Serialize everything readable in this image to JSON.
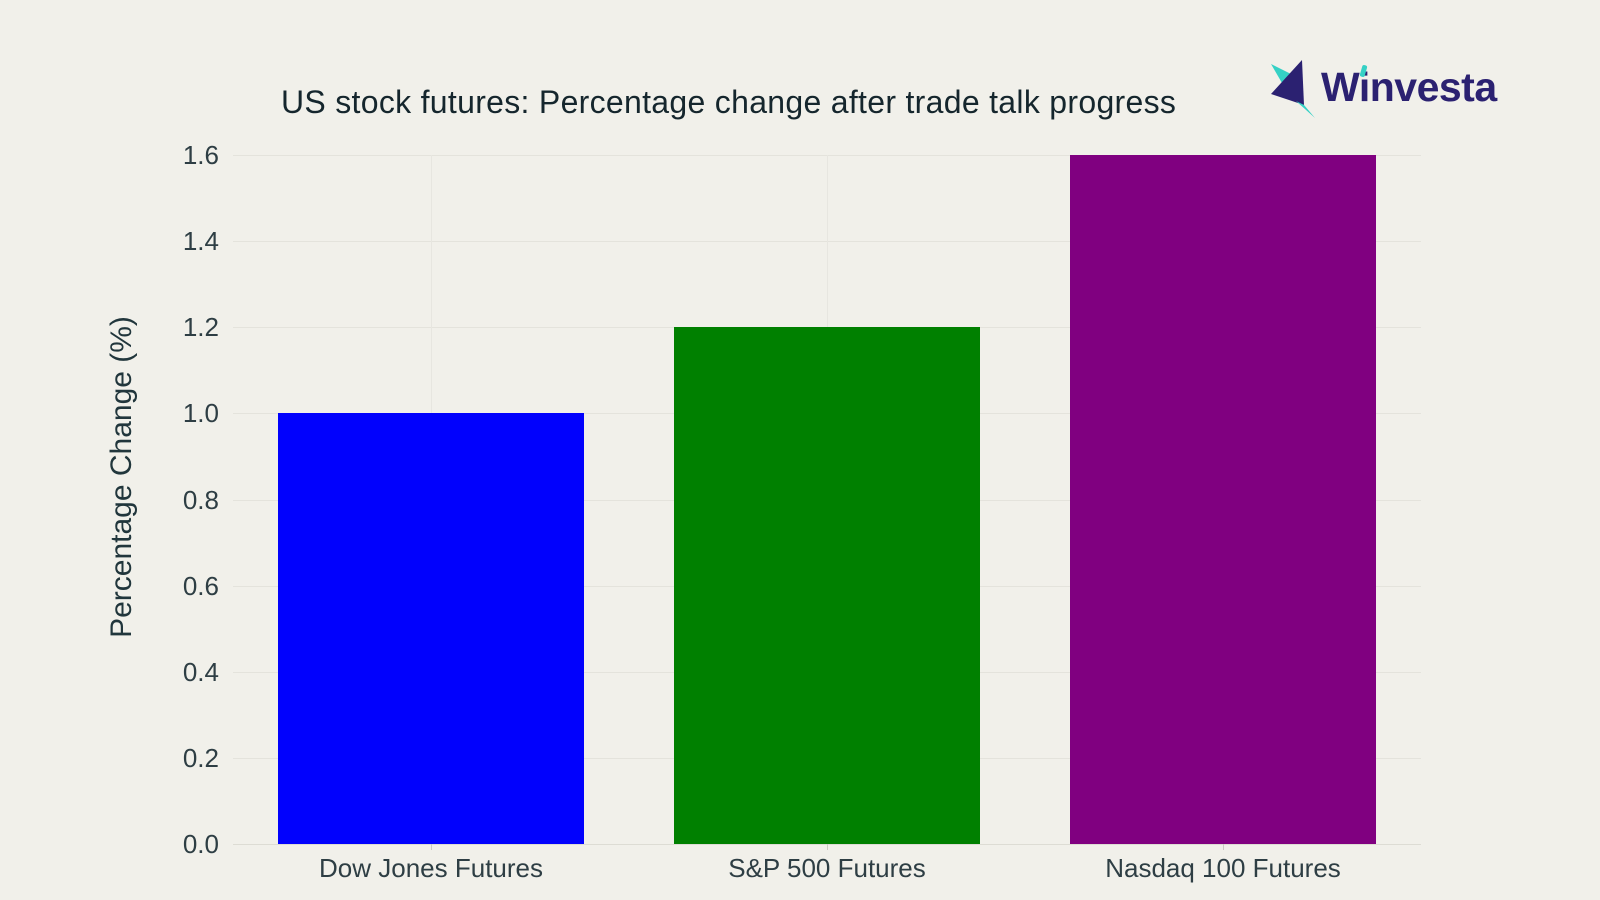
{
  "page": {
    "background": "#f1f0ea"
  },
  "header": {
    "logo": {
      "brand": "Winvesta",
      "icon": "origami-hummingbird",
      "navy": "#2b2171",
      "teal": "#35d1c5"
    }
  },
  "chart_data": {
    "type": "bar",
    "title": "US stock futures: Percentage change after trade talk progress",
    "categories": [
      "Dow Jones Futures",
      "S&P 500 Futures",
      "Nasdaq 100 Futures"
    ],
    "values": [
      1.0,
      1.2,
      1.6
    ],
    "bar_colors": [
      "#0101fd",
      "#008000",
      "#800080"
    ],
    "xlabel": "",
    "ylabel": "Percentage Change (%)",
    "ylim": [
      0.0,
      1.6
    ],
    "yticks": [
      0.0,
      0.2,
      0.4,
      0.6,
      0.8,
      1.0,
      1.2,
      1.4,
      1.6
    ],
    "ytick_labels": [
      "0.0",
      "0.2",
      "0.4",
      "0.6",
      "0.8",
      "1.0",
      "1.2",
      "1.4",
      "1.6"
    ],
    "grid": true,
    "legend": false,
    "background": "#f1f0ea",
    "gridline_color": "#e4e3dc",
    "text_color": "#2e3e44"
  }
}
